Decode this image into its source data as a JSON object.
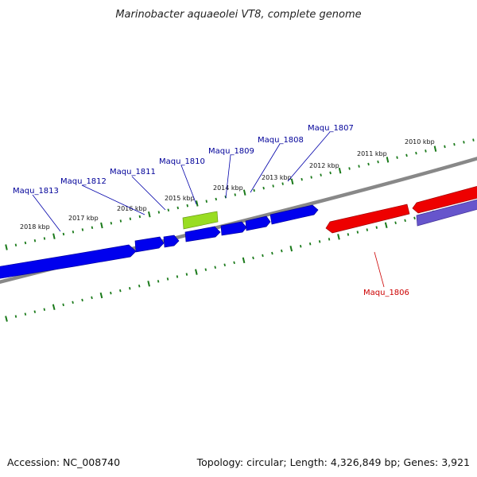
{
  "title": "Marinobacter aquaeolei VT8, complete genome",
  "footer": {
    "accession": "Accession: NC_008740",
    "topology": "Topology: circular; Length: 4,326,849 bp; Genes: 3,921"
  },
  "colors": {
    "forward_gene": "#0000ee",
    "reverse_gene": "#ee0000",
    "highlight_gene": "#99dd22",
    "secondary_track": "#6655cc",
    "backbone": "#888888",
    "tick": "#1a7a1a",
    "forward_label": "#000099",
    "reverse_label": "#cc0000"
  },
  "kbp_labels": [
    "2018 kbp",
    "2017 kbp",
    "2016 kbp",
    "2015 kbp",
    "2014 kbp",
    "2013 kbp",
    "2012 kbp",
    "2011 kbp",
    "2010 kbp"
  ],
  "gene_labels": [
    {
      "name": "Maqu_1813",
      "strand": "forward"
    },
    {
      "name": "Maqu_1812",
      "strand": "forward"
    },
    {
      "name": "Maqu_1811",
      "strand": "forward"
    },
    {
      "name": "Maqu_1810",
      "strand": "forward"
    },
    {
      "name": "Maqu_1809",
      "strand": "forward"
    },
    {
      "name": "Maqu_1808",
      "strand": "forward"
    },
    {
      "name": "Maqu_1807",
      "strand": "forward"
    },
    {
      "name": "Maqu_1806",
      "strand": "reverse"
    }
  ]
}
